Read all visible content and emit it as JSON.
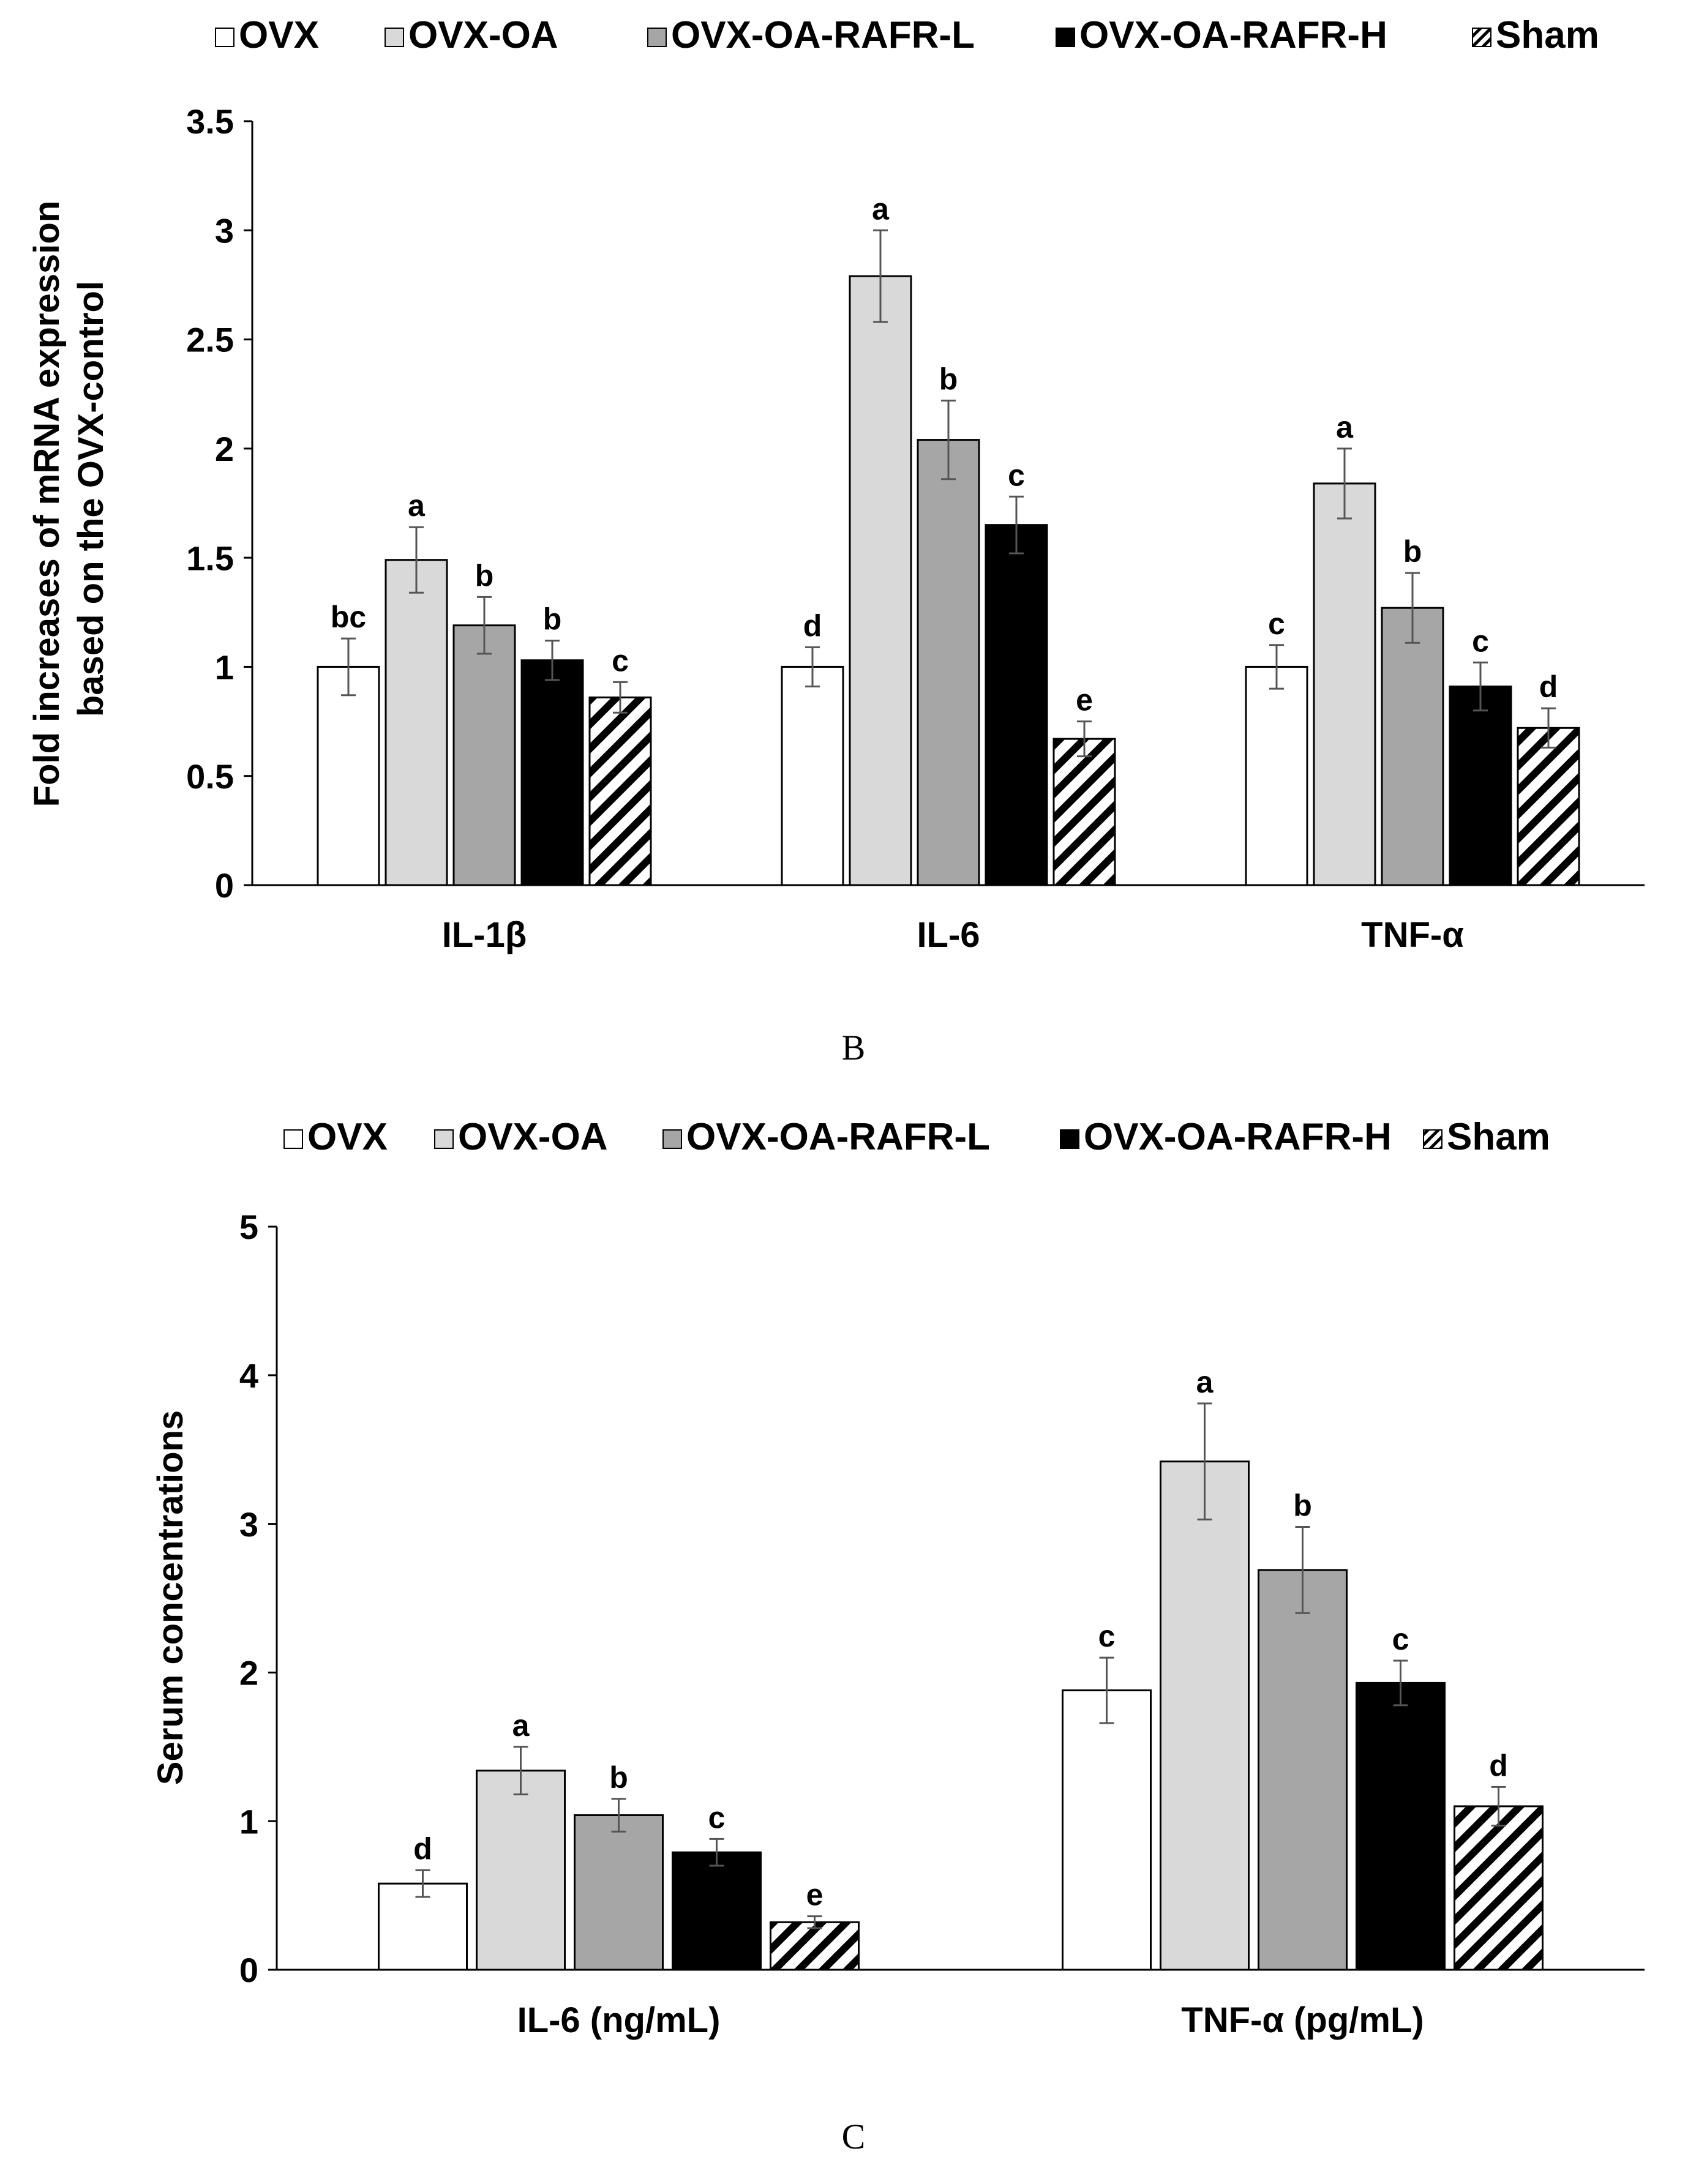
{
  "legend_entries": [
    {
      "name": "OVX",
      "fill": "#ffffff",
      "pattern": "none"
    },
    {
      "name": "OVX-OA",
      "fill": "#d9d9d9",
      "pattern": "none"
    },
    {
      "name": "OVX-OA-RAFR-L",
      "fill": "#a6a6a6",
      "pattern": "none"
    },
    {
      "name": "OVX-OA-RAFR-H",
      "fill": "#000000",
      "pattern": "none"
    },
    {
      "name": "Sham",
      "fill": "#ffffff",
      "pattern": "diagonal-hatch"
    }
  ],
  "chart_data": [
    {
      "type": "bar",
      "panel": "mRNA expression",
      "title": "",
      "caption": "B",
      "xlabel": "",
      "ylabel": "Fold increases of mRNA expression based on the OVX-control",
      "ylabel_lines": [
        "Fold increases of mRNA expression",
        "based on the OVX-control"
      ],
      "ylim": [
        0,
        3.5
      ],
      "yticks": [
        0,
        0.5,
        1,
        1.5,
        2,
        2.5,
        3,
        3.5
      ],
      "ytick_labels": [
        "0",
        "0.5",
        "1",
        "1.5",
        "2",
        "2.5",
        "3",
        "3.5"
      ],
      "categories": [
        "IL-1β",
        "IL-6",
        "TNF-α"
      ],
      "series": [
        {
          "name": "OVX",
          "values": [
            1.0,
            1.0,
            1.0
          ],
          "errors": [
            0.13,
            0.09,
            0.1
          ],
          "labels": [
            "bc",
            "d",
            "c"
          ]
        },
        {
          "name": "OVX-OA",
          "values": [
            1.49,
            2.79,
            1.84
          ],
          "errors": [
            0.15,
            0.21,
            0.16
          ],
          "labels": [
            "a",
            "a",
            "a"
          ]
        },
        {
          "name": "OVX-OA-RAFR-L",
          "values": [
            1.19,
            2.04,
            1.27
          ],
          "errors": [
            0.13,
            0.18,
            0.16
          ],
          "labels": [
            "b",
            "b",
            "b"
          ]
        },
        {
          "name": "OVX-OA-RAFR-H",
          "values": [
            1.03,
            1.65,
            0.91
          ],
          "errors": [
            0.09,
            0.13,
            0.11
          ],
          "labels": [
            "b",
            "c",
            "c"
          ]
        },
        {
          "name": "Sham",
          "values": [
            0.86,
            0.67,
            0.72
          ],
          "errors": [
            0.07,
            0.08,
            0.09
          ],
          "labels": [
            "c",
            "e",
            "d"
          ]
        }
      ]
    },
    {
      "type": "bar",
      "panel": "serum concentrations",
      "title": "",
      "caption": "C",
      "xlabel": "",
      "ylabel": "Serum concentrations",
      "ylabel_lines": [
        "Serum concentrations"
      ],
      "ylim": [
        0,
        5
      ],
      "yticks": [
        0,
        1,
        2,
        3,
        4,
        5
      ],
      "ytick_labels": [
        "0",
        "1",
        "2",
        "3",
        "4",
        "5"
      ],
      "categories": [
        "IL-6 (ng/mL)",
        "TNF-α (pg/mL)"
      ],
      "series": [
        {
          "name": "OVX",
          "values": [
            0.58,
            1.88
          ],
          "errors": [
            0.09,
            0.22
          ],
          "labels": [
            "d",
            "c"
          ]
        },
        {
          "name": "OVX-OA",
          "values": [
            1.34,
            3.42
          ],
          "errors": [
            0.16,
            0.39
          ],
          "labels": [
            "a",
            "a"
          ]
        },
        {
          "name": "OVX-OA-RAFR-L",
          "values": [
            1.04,
            2.69
          ],
          "errors": [
            0.11,
            0.29
          ],
          "labels": [
            "b",
            "b"
          ]
        },
        {
          "name": "OVX-OA-RAFR-H",
          "values": [
            0.79,
            1.93
          ],
          "errors": [
            0.09,
            0.15
          ],
          "labels": [
            "c",
            "c"
          ]
        },
        {
          "name": "Sham",
          "values": [
            0.32,
            1.1
          ],
          "errors": [
            0.04,
            0.13
          ],
          "labels": [
            "e",
            "d"
          ]
        }
      ]
    }
  ]
}
